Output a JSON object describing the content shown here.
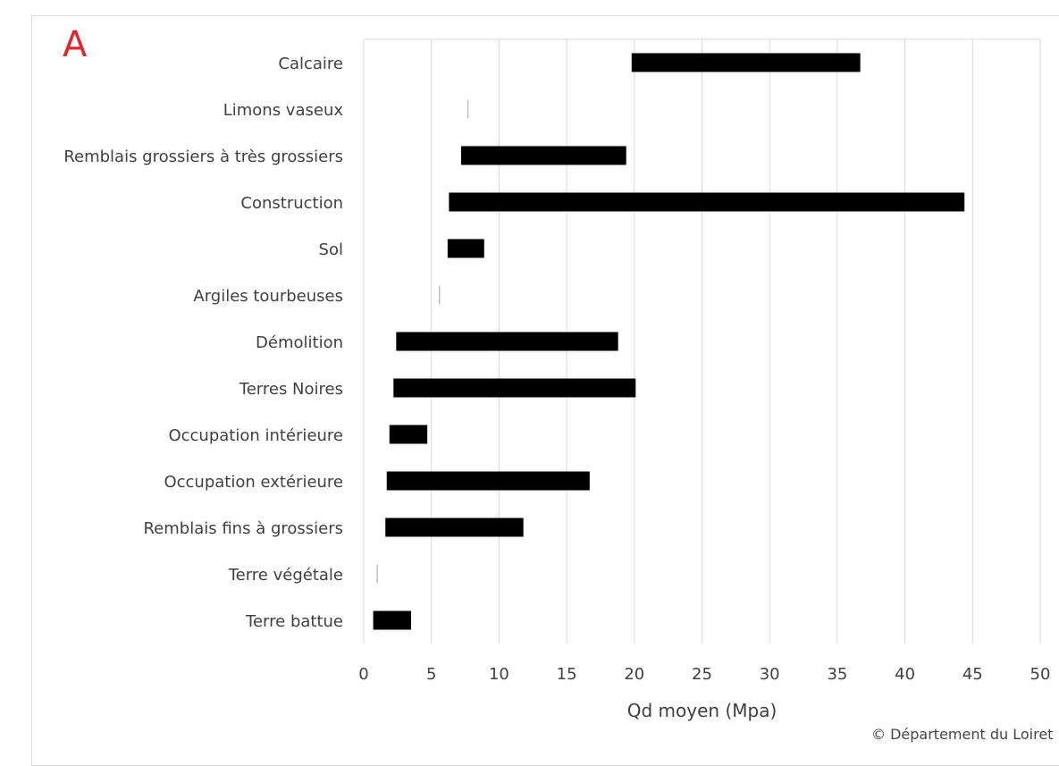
{
  "panel_letter": "A",
  "credit": "© Département du Loiret",
  "chart_data": {
    "type": "bar",
    "orientation": "horizontal-floating",
    "xlabel": "Qd moyen (Mpa)",
    "xlim": [
      0,
      50
    ],
    "xticks": [
      0,
      5,
      10,
      15,
      20,
      25,
      30,
      35,
      40,
      45,
      50
    ],
    "grid": "vertical",
    "bar_color": "#000000",
    "categories": [
      "Calcaire",
      "Limons vaseux",
      "Remblais grossiers à très grossiers",
      "Construction",
      "Sol",
      "Argiles tourbeuses",
      "Démolition",
      "Terres Noires",
      "Occupation intérieure",
      "Occupation extérieure",
      "Remblais fins à grossiers",
      "Terre végétale",
      "Terre battue"
    ],
    "ranges": [
      [
        19.8,
        36.7
      ],
      [
        7.7,
        7.7
      ],
      [
        7.2,
        19.4
      ],
      [
        6.3,
        44.4
      ],
      [
        6.2,
        8.9
      ],
      [
        5.6,
        5.6
      ],
      [
        2.4,
        18.8
      ],
      [
        2.2,
        20.1
      ],
      [
        1.9,
        4.7
      ],
      [
        1.7,
        16.7
      ],
      [
        1.6,
        11.8
      ],
      [
        1.0,
        1.0
      ],
      [
        0.7,
        3.5
      ]
    ]
  }
}
